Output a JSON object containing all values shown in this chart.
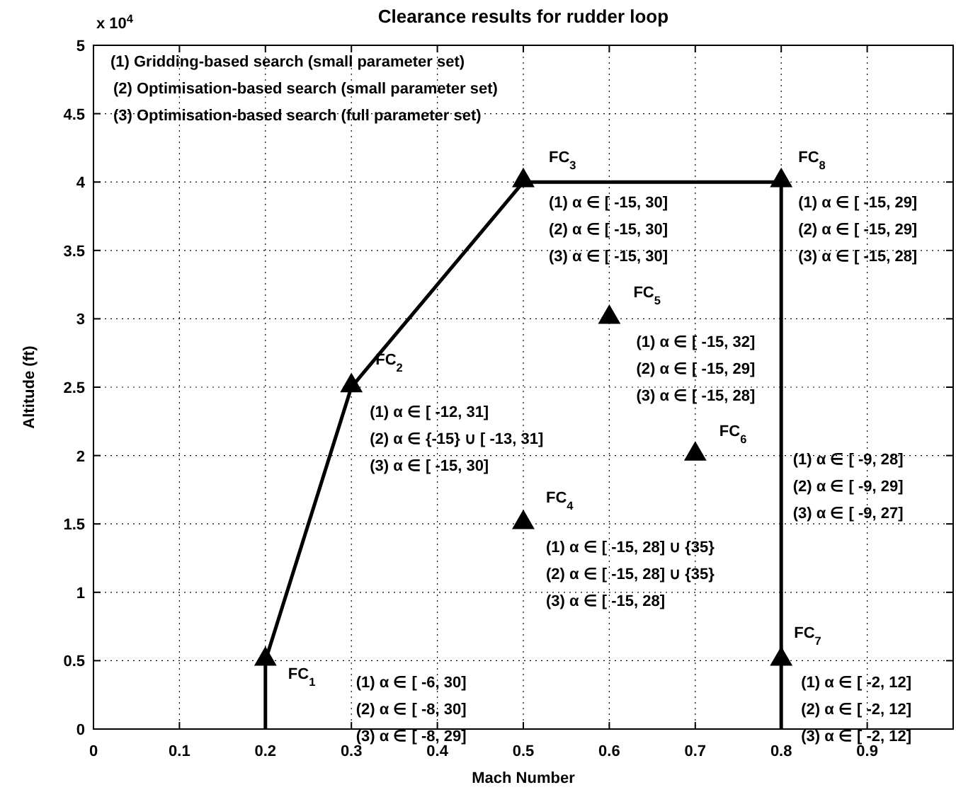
{
  "chart_data": {
    "type": "line",
    "title": "Clearance results for rudder loop",
    "xlabel": "Mach Number",
    "ylabel": "Altitude (ft)",
    "xlim": [
      0,
      1
    ],
    "ylim": [
      0,
      5
    ],
    "xticks": [
      0,
      0.1,
      0.2,
      0.3,
      0.4,
      0.5,
      0.6,
      0.7,
      0.8,
      0.9
    ],
    "yticks": [
      0,
      0.5,
      1,
      1.5,
      2,
      2.5,
      3,
      3.5,
      4,
      4.5,
      5
    ],
    "grid": true,
    "series": [
      {
        "color": "#000000",
        "x": [
          0.2,
          0.2,
          0.3,
          0.5,
          0.8,
          0.8
        ],
        "values": [
          0,
          0.5,
          2.5,
          4,
          4,
          0
        ],
        "marker": "none",
        "line_style": "solid"
      },
      {
        "type": "scatter",
        "color": "#000000",
        "x": [
          0.2,
          0.3,
          0.5,
          0.5,
          0.6,
          0.7,
          0.8,
          0.8
        ],
        "values": [
          0.5,
          2.5,
          4,
          1.5,
          3,
          2,
          0.5,
          4
        ],
        "marker": "triangle"
      }
    ],
    "annotations": [
      "x 10$^{4}$",
      "(1) Gridding-based search (small parameter set)",
      "(2) Optimisation-based search (small parameter set)",
      "(3) Optimisation-based search (full parameter set)",
      {
        "text": "FC$_{1}$",
        "x": 0.2,
        "y": 0.5
      },
      "(1) α ∈ [ -6, 30]",
      "(2) α ∈ [ -8, 30]",
      "(3) α ∈ [ -8, 29]",
      {
        "text": "FC$_{2}$",
        "x": 0.3,
        "y": 2.5
      },
      "(1) α ∈ [ -12, 31]",
      "(2) α ∈ {-15} ∪ [ -13, 31]",
      "(3) α ∈ [ -15, 30]",
      {
        "text": "FC$_{3}$",
        "x": 0.5,
        "y": 4
      },
      "(1)  α ∈ [ -15, 30]",
      "(2) α ∈ [ -15, 30]",
      "(3) α ∈ [ -15, 30]",
      {
        "text": "FC$_{4}$",
        "x": 0.5,
        "y": 1.5
      },
      "(1) α ∈ [ -15, 28] ∪ {35}",
      "(2) α ∈ [ -15, 28] ∪ {35}",
      "(3) α ∈ [ -15, 28]",
      {
        "text": "FC$_{5}$",
        "x": 0.6,
        "y": 3
      },
      "(1) α ∈ [ -15, 32]",
      "(2) α ∈ [ -15, 29]",
      "(3) α ∈ [ -15, 28]",
      {
        "text": "FC$_{6}$",
        "x": 0.7,
        "y": 2
      },
      "(1) α ∈ [ -9, 28]",
      "(2) α ∈ [ -9, 29]",
      "(3) α ∈ [ -9, 27]",
      {
        "text": "FC$_{7}$",
        "x": 0.8,
        "y": 0.5
      },
      "(1) α ∈ [ -2, 12]",
      "(2) α ∈ [ -2, 12]",
      "(3) α ∈ [ -2, 12]",
      {
        "text": "FC$_{8}$",
        "x": 0.8,
        "y": 4
      },
      "(1) α ∈ [ -15, 29]",
      "(2) α ∈ [ -15, 29]",
      "(3) α ∈ [ -15, 28]"
    ]
  }
}
